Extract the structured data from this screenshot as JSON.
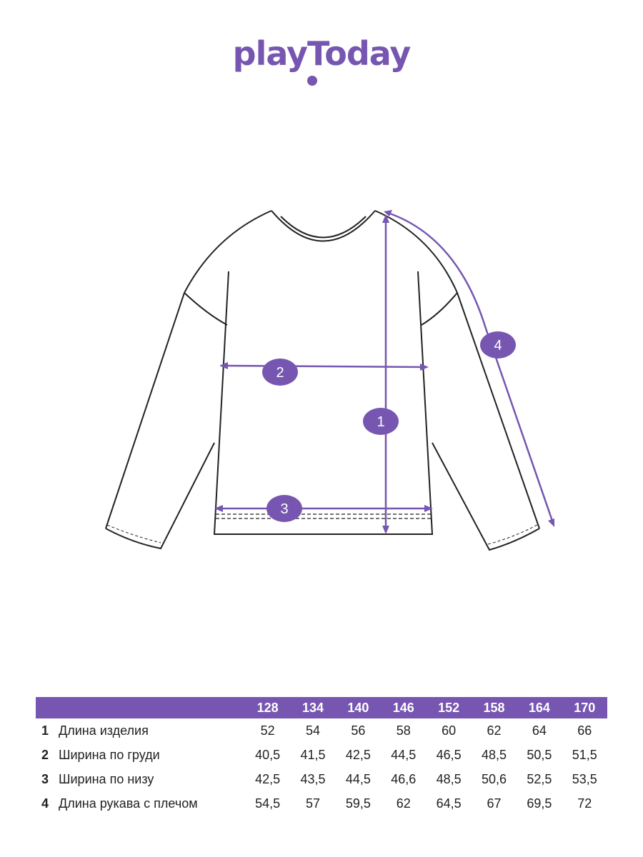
{
  "brand": {
    "logo_text": "playToday",
    "color": "#7656b0"
  },
  "diagram": {
    "markers": [
      "1",
      "2",
      "3",
      "4"
    ]
  },
  "size_table": {
    "header": [
      "128",
      "134",
      "140",
      "146",
      "152",
      "158",
      "164",
      "170"
    ],
    "rows": [
      {
        "num": "1",
        "name": "Длина изделия",
        "values": [
          "52",
          "54",
          "56",
          "58",
          "60",
          "62",
          "64",
          "66"
        ]
      },
      {
        "num": "2",
        "name": "Ширина по груди",
        "values": [
          "40,5",
          "41,5",
          "42,5",
          "44,5",
          "46,5",
          "48,5",
          "50,5",
          "51,5"
        ]
      },
      {
        "num": "3",
        "name": "Ширина по низу",
        "values": [
          "42,5",
          "43,5",
          "44,5",
          "46,6",
          "48,5",
          "50,6",
          "52,5",
          "53,5"
        ]
      },
      {
        "num": "4",
        "name": "Длина рукава с плечом",
        "values": [
          "54,5",
          "57",
          "59,5",
          "62",
          "64,5",
          "67",
          "69,5",
          "72"
        ]
      }
    ]
  }
}
